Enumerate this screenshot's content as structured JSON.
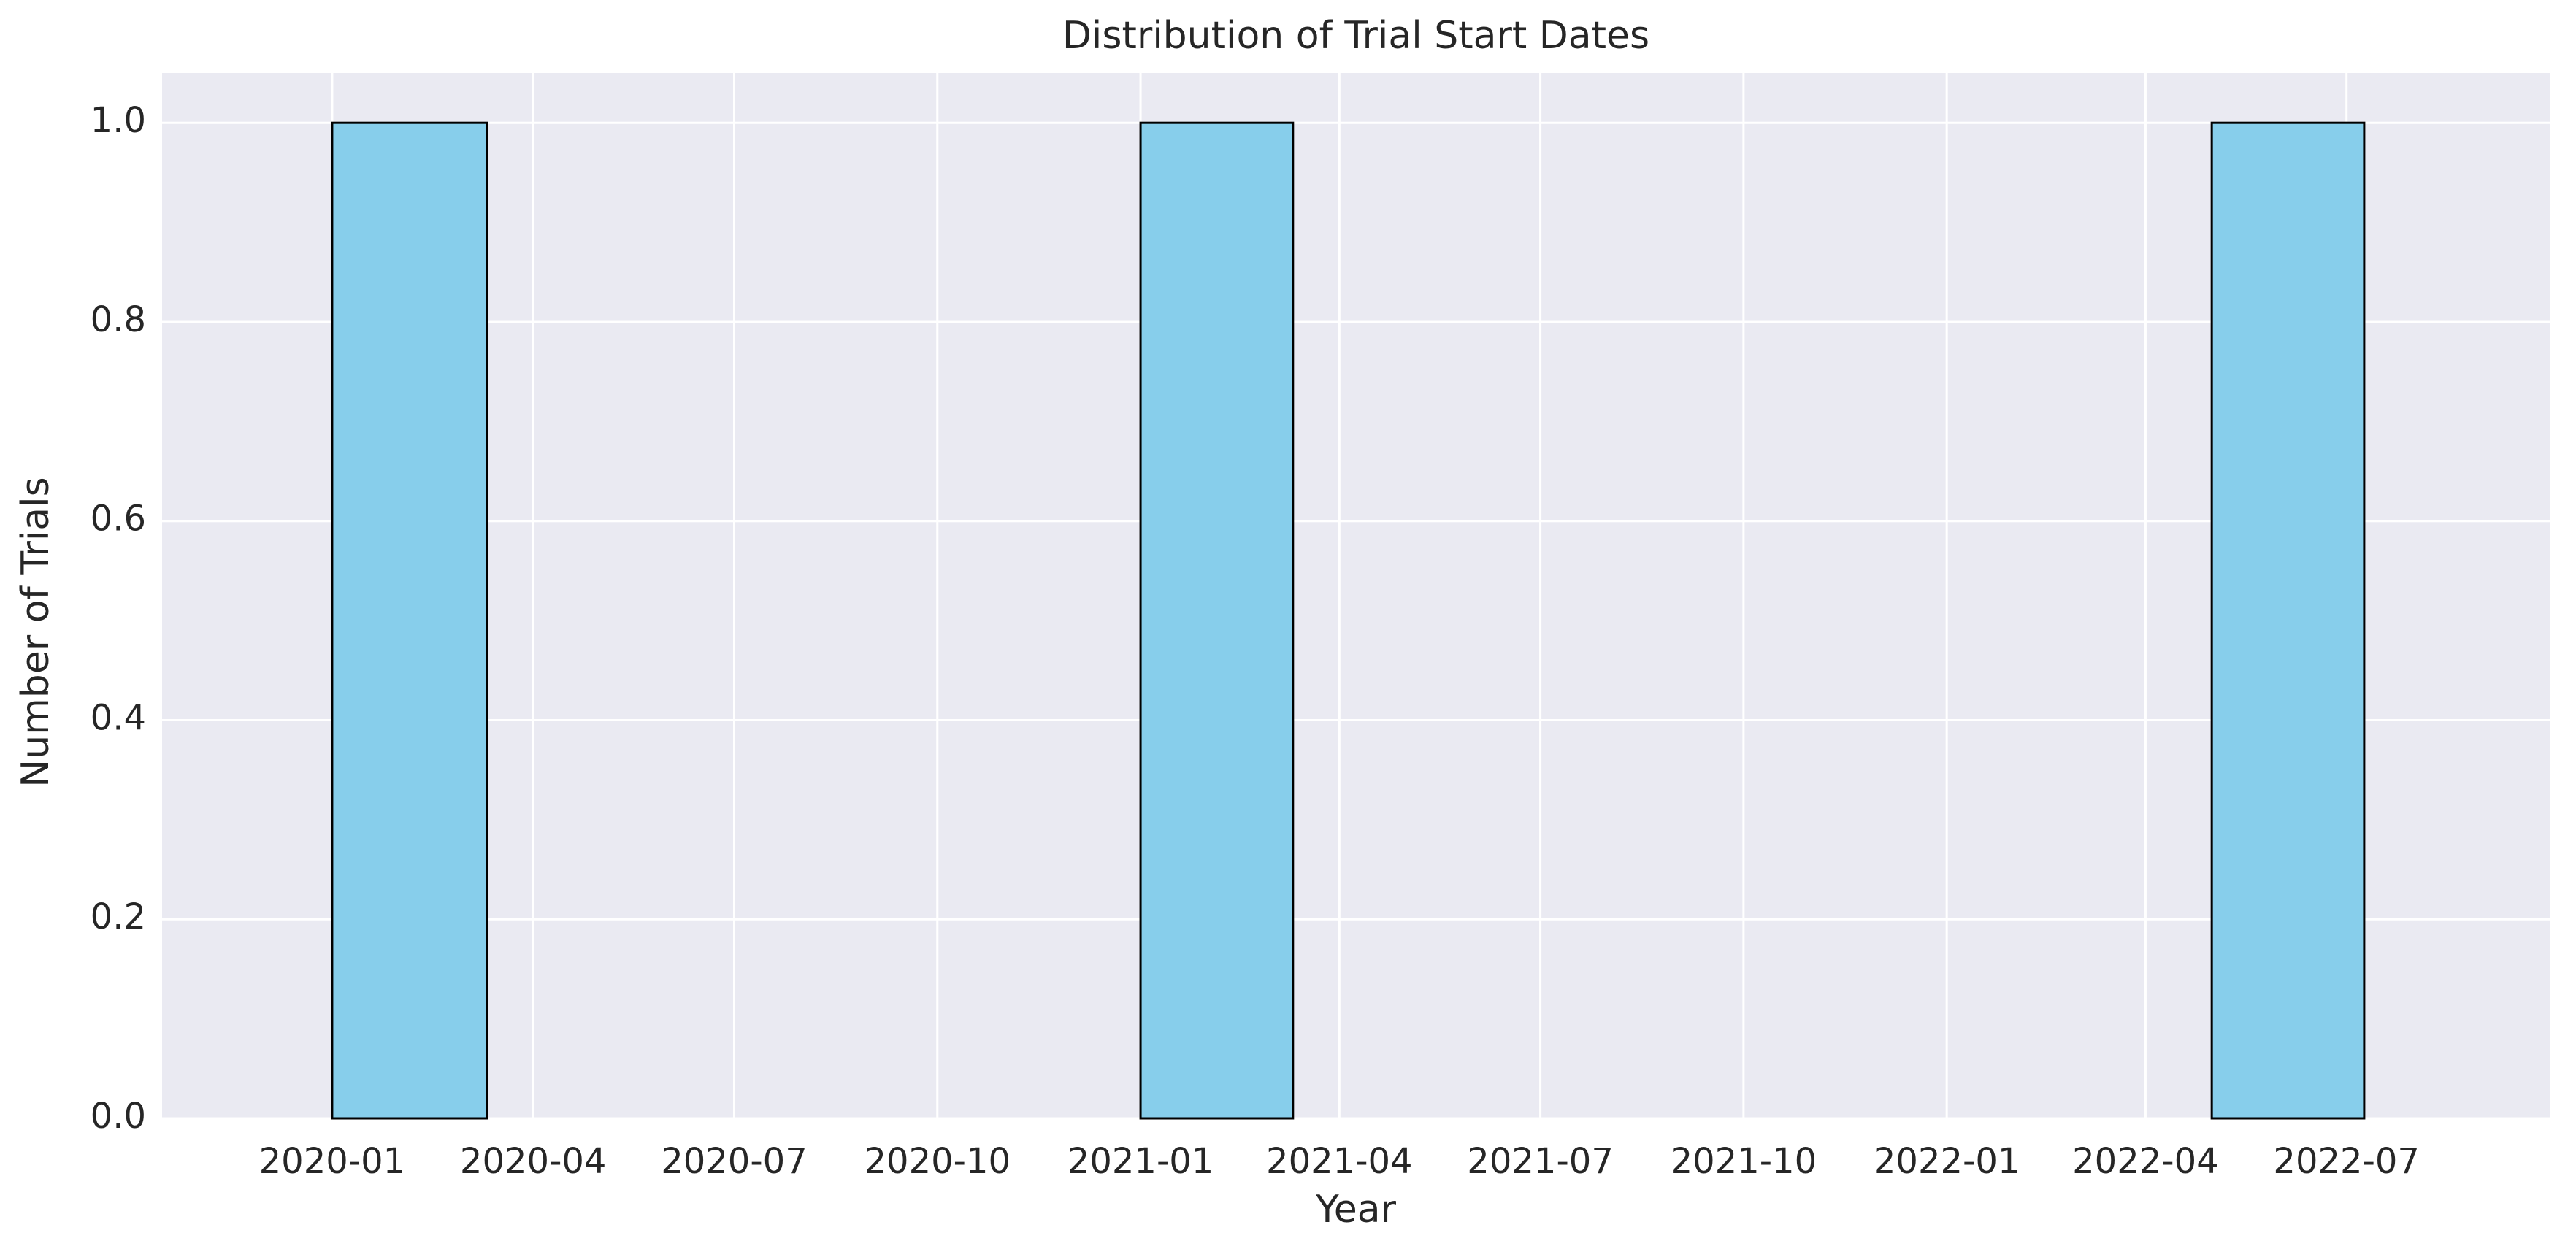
{
  "chart_data": {
    "type": "bar",
    "title": "Distribution of Trial Start Dates",
    "xlabel": "Year",
    "ylabel": "Number of Trials",
    "x_axis_type": "date",
    "xlim": [
      "2019-10-16",
      "2022-10-01"
    ],
    "ylim": [
      0,
      1.05
    ],
    "x_ticks": [
      "2020-01",
      "2020-04",
      "2020-07",
      "2020-10",
      "2021-01",
      "2021-04",
      "2021-07",
      "2021-10",
      "2022-01",
      "2022-04",
      "2022-07"
    ],
    "y_ticks": [
      "0.0",
      "0.2",
      "0.4",
      "0.6",
      "0.8",
      "1.0"
    ],
    "bars": [
      {
        "start": "2020-01-01",
        "end": "2020-03-11",
        "value": 1
      },
      {
        "start": "2021-01-01",
        "end": "2021-03-11",
        "value": 1
      },
      {
        "start": "2022-05-01",
        "end": "2022-07-09",
        "value": 1
      }
    ],
    "grid": true,
    "colors": {
      "bar_fill": "#87CEEB",
      "bar_edge": "#000000",
      "plot_background": "#EAEAF2",
      "grid": "#FFFFFF"
    }
  }
}
